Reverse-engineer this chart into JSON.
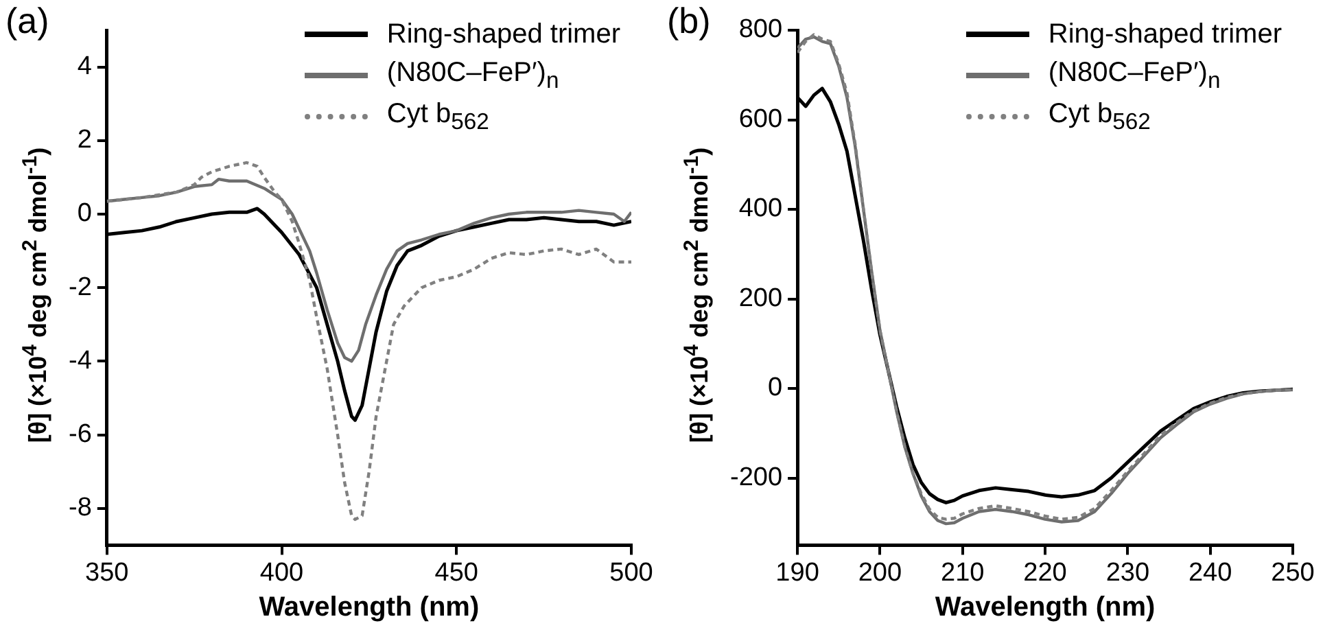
{
  "chart_data": [
    {
      "type": "line",
      "title": "(a)",
      "xlabel": "Wavelength (nm)",
      "ylabel": "[θ] (×10$^{4}$ deg cm$^{2}$ dmol$^{-1}$)",
      "xlim": [
        350,
        500
      ],
      "xticks": [
        350,
        400,
        450,
        500
      ],
      "ylim": [
        -9,
        5
      ],
      "yticks": [
        -8,
        -6,
        -4,
        -2,
        0,
        2,
        4
      ],
      "grid": false,
      "legend": "top right",
      "marker": "none",
      "series": [
        {
          "name": "Ring-shaped trimer",
          "color": "#000000",
          "line_style": "solid",
          "x": [
            350,
            355,
            360,
            365,
            370,
            375,
            380,
            385,
            390,
            393,
            395,
            400,
            405,
            410,
            413,
            416,
            418,
            420,
            421,
            423,
            425,
            427,
            430,
            433,
            436,
            440,
            445,
            450,
            455,
            460,
            465,
            470,
            475,
            480,
            485,
            490,
            495,
            500
          ],
          "values": [
            -0.55,
            -0.5,
            -0.45,
            -0.35,
            -0.2,
            -0.1,
            0,
            0.05,
            0.05,
            0.15,
            0,
            -0.5,
            -1.1,
            -2.0,
            -3.0,
            -4.0,
            -4.8,
            -5.5,
            -5.6,
            -5.2,
            -4.2,
            -3.2,
            -2.1,
            -1.4,
            -1.0,
            -0.85,
            -0.6,
            -0.45,
            -0.35,
            -0.25,
            -0.15,
            -0.15,
            -0.1,
            -0.15,
            -0.2,
            -0.2,
            -0.3,
            -0.2
          ]
        },
        {
          "name": "(N80C–FeP′)$_{n}$",
          "color": "#6e6e6e",
          "line_style": "solid",
          "x": [
            350,
            355,
            360,
            365,
            370,
            375,
            380,
            382,
            385,
            390,
            395,
            400,
            403,
            405,
            408,
            410,
            413,
            416,
            418,
            420,
            422,
            424,
            427,
            430,
            433,
            436,
            440,
            445,
            450,
            455,
            460,
            465,
            470,
            475,
            480,
            485,
            490,
            495,
            498,
            500
          ],
          "values": [
            0.35,
            0.4,
            0.45,
            0.5,
            0.6,
            0.75,
            0.8,
            0.95,
            0.9,
            0.9,
            0.7,
            0.4,
            0,
            -0.4,
            -1.0,
            -1.6,
            -2.6,
            -3.5,
            -3.9,
            -4.0,
            -3.7,
            -3.0,
            -2.2,
            -1.5,
            -1.0,
            -0.8,
            -0.7,
            -0.55,
            -0.45,
            -0.25,
            -0.1,
            0,
            0.05,
            0.05,
            0.05,
            0.1,
            0.05,
            0,
            -0.2,
            0.05
          ]
        },
        {
          "name": "Cyt b$_{562}$",
          "color": "#808080",
          "line_style": "dashed",
          "x": [
            350,
            360,
            370,
            375,
            377,
            380,
            385,
            390,
            393,
            395,
            398,
            400,
            403,
            405,
            408,
            410,
            413,
            416,
            418,
            420,
            421,
            423,
            425,
            427,
            430,
            432,
            435,
            440,
            445,
            450,
            455,
            460,
            465,
            470,
            475,
            480,
            485,
            490,
            495,
            500
          ],
          "values": [
            0.35,
            0.45,
            0.6,
            0.8,
            1.0,
            1.15,
            1.3,
            1.4,
            1.3,
            1.0,
            0.6,
            0.4,
            -0.2,
            -0.8,
            -1.8,
            -2.8,
            -4.2,
            -6.0,
            -7.3,
            -8.2,
            -8.3,
            -8.2,
            -7.0,
            -5.5,
            -4.0,
            -3.0,
            -2.5,
            -2.0,
            -1.8,
            -1.7,
            -1.5,
            -1.2,
            -1.05,
            -1.1,
            -1.0,
            -0.95,
            -1.1,
            -0.95,
            -1.3,
            -1.3
          ]
        }
      ]
    },
    {
      "type": "line",
      "title": "(b)",
      "xlabel": "Wavelength (nm)",
      "ylabel": "[θ] (×10$^{4}$ deg cm$^{2}$ dmol$^{-1}$)",
      "xlim": [
        190,
        250
      ],
      "xticks": [
        190,
        200,
        210,
        220,
        230,
        240,
        250
      ],
      "ylim": [
        -350,
        800
      ],
      "yticks": [
        -200,
        0,
        200,
        400,
        600,
        800
      ],
      "grid": false,
      "legend": "top right",
      "marker": "none",
      "series": [
        {
          "name": "Ring-shaped trimer",
          "color": "#000000",
          "line_style": "solid",
          "x": [
            190,
            191,
            192,
            193,
            194,
            195,
            196,
            197,
            198,
            199,
            200,
            201,
            202,
            203,
            204,
            205,
            206,
            207,
            208,
            209,
            210,
            212,
            214,
            216,
            218,
            220,
            222,
            224,
            226,
            228,
            230,
            232,
            234,
            236,
            238,
            240,
            242,
            244,
            246,
            248,
            250
          ],
          "values": [
            650,
            630,
            655,
            670,
            640,
            590,
            530,
            430,
            330,
            220,
            120,
            40,
            -40,
            -110,
            -170,
            -210,
            -235,
            -248,
            -255,
            -250,
            -240,
            -228,
            -222,
            -226,
            -230,
            -238,
            -242,
            -238,
            -228,
            -200,
            -165,
            -130,
            -95,
            -70,
            -45,
            -30,
            -18,
            -10,
            -6,
            -4,
            -2
          ]
        },
        {
          "name": "(N80C–FeP′)$_{n}$",
          "color": "#6e6e6e",
          "line_style": "solid",
          "x": [
            190,
            191,
            192,
            193,
            194,
            195,
            196,
            197,
            198,
            199,
            200,
            201,
            202,
            203,
            204,
            205,
            206,
            207,
            208,
            209,
            210,
            212,
            214,
            216,
            218,
            220,
            222,
            224,
            226,
            228,
            230,
            232,
            234,
            236,
            238,
            240,
            242,
            244,
            246,
            248,
            250
          ],
          "values": [
            760,
            780,
            785,
            775,
            770,
            720,
            650,
            540,
            400,
            260,
            130,
            40,
            -50,
            -130,
            -190,
            -240,
            -275,
            -295,
            -302,
            -300,
            -290,
            -275,
            -270,
            -275,
            -282,
            -292,
            -298,
            -295,
            -275,
            -235,
            -190,
            -150,
            -110,
            -80,
            -52,
            -35,
            -22,
            -12,
            -7,
            -4,
            -3
          ]
        },
        {
          "name": "Cyt b$_{562}$",
          "color": "#808080",
          "line_style": "dashed",
          "x": [
            190,
            191,
            192,
            193,
            194,
            195,
            196,
            197,
            198,
            199,
            200,
            201,
            202,
            203,
            204,
            205,
            206,
            207,
            208,
            209,
            210,
            212,
            214,
            216,
            218,
            220,
            222,
            224,
            226,
            228,
            230,
            232,
            234,
            236,
            238,
            240,
            242,
            244,
            246,
            248,
            250
          ],
          "values": [
            750,
            775,
            790,
            780,
            775,
            725,
            660,
            545,
            400,
            260,
            130,
            40,
            -50,
            -130,
            -190,
            -235,
            -270,
            -288,
            -292,
            -290,
            -280,
            -268,
            -262,
            -268,
            -275,
            -285,
            -292,
            -288,
            -268,
            -228,
            -185,
            -145,
            -105,
            -75,
            -50,
            -33,
            -20,
            -12,
            -7,
            -4,
            -3
          ]
        }
      ]
    }
  ]
}
